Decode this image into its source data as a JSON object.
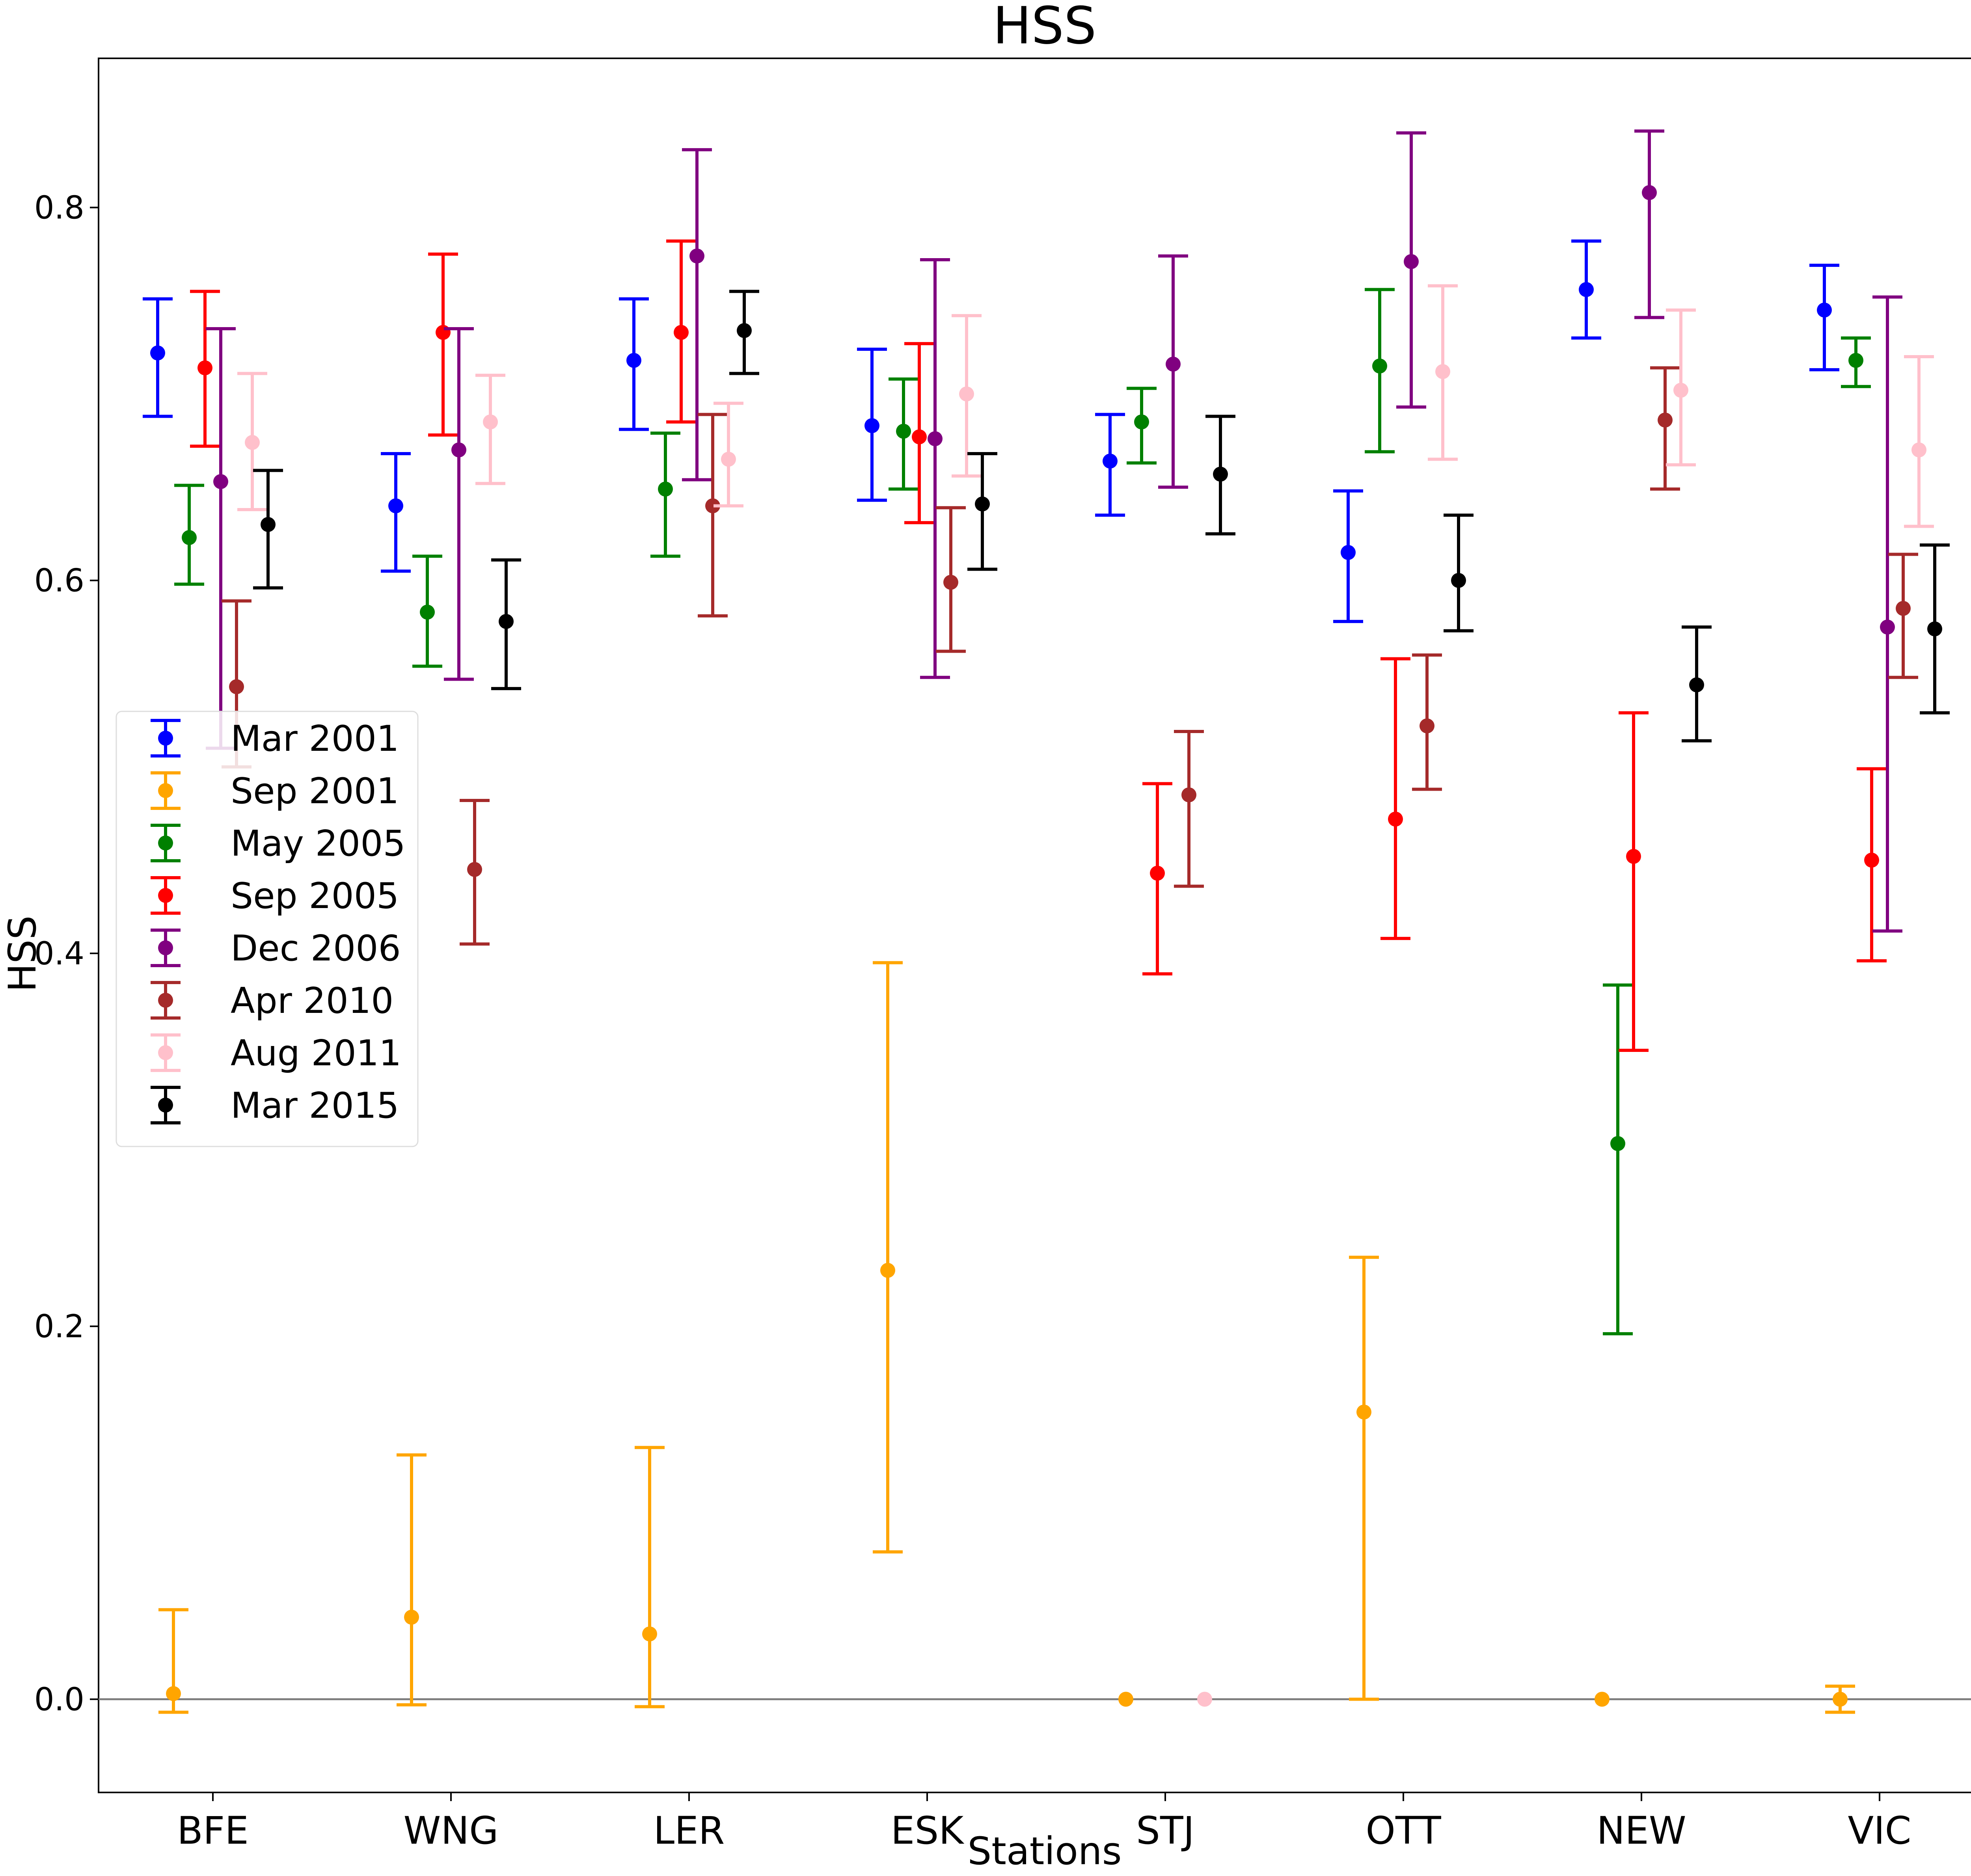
{
  "chart_data": {
    "type": "scatter",
    "title": "HSS",
    "xlabel": "Stations",
    "ylabel": "HSS",
    "categories": [
      "BFE",
      "WNG",
      "LER",
      "ESK",
      "STJ",
      "OTT",
      "NEW",
      "VIC"
    ],
    "ylim": [
      -0.05,
      0.88
    ],
    "yticks": [
      "0.0",
      "0.2",
      "0.4",
      "0.6",
      "0.8"
    ],
    "reference_line": 0.0,
    "legend_position": "center-left",
    "series": [
      {
        "name": "Mar 2001",
        "color": "#0000ff",
        "points": [
          {
            "station": "BFE",
            "value": 0.722,
            "lo": 0.688,
            "hi": 0.751
          },
          {
            "station": "WNG",
            "value": 0.64,
            "lo": 0.605,
            "hi": 0.668
          },
          {
            "station": "LER",
            "value": 0.718,
            "lo": 0.681,
            "hi": 0.751
          },
          {
            "station": "ESK",
            "value": 0.683,
            "lo": 0.643,
            "hi": 0.724
          },
          {
            "station": "STJ",
            "value": 0.664,
            "lo": 0.635,
            "hi": 0.689
          },
          {
            "station": "OTT",
            "value": 0.615,
            "lo": 0.578,
            "hi": 0.648
          },
          {
            "station": "NEW",
            "value": 0.756,
            "lo": 0.73,
            "hi": 0.782
          },
          {
            "station": "VIC",
            "value": 0.745,
            "lo": 0.713,
            "hi": 0.769
          }
        ]
      },
      {
        "name": "Sep 2001",
        "color": "#ffa500",
        "points": [
          {
            "station": "BFE",
            "value": 0.003,
            "lo": -0.007,
            "hi": 0.048
          },
          {
            "station": "WNG",
            "value": 0.044,
            "lo": -0.003,
            "hi": 0.131
          },
          {
            "station": "LER",
            "value": 0.035,
            "lo": -0.004,
            "hi": 0.135
          },
          {
            "station": "ESK",
            "value": 0.23,
            "lo": 0.079,
            "hi": 0.395
          },
          {
            "station": "STJ",
            "value": 0.0,
            "lo": 0.0,
            "hi": 0.0
          },
          {
            "station": "OTT",
            "value": 0.154,
            "lo": 0.0,
            "hi": 0.237
          },
          {
            "station": "NEW",
            "value": 0.0,
            "lo": 0.0,
            "hi": 0.0
          },
          {
            "station": "VIC",
            "value": 0.0,
            "lo": -0.007,
            "hi": 0.007
          }
        ]
      },
      {
        "name": "May 2005",
        "color": "#008000",
        "points": [
          {
            "station": "BFE",
            "value": 0.623,
            "lo": 0.598,
            "hi": 0.651
          },
          {
            "station": "WNG",
            "value": 0.583,
            "lo": 0.554,
            "hi": 0.613
          },
          {
            "station": "LER",
            "value": 0.649,
            "lo": 0.613,
            "hi": 0.679
          },
          {
            "station": "ESK",
            "value": 0.68,
            "lo": 0.649,
            "hi": 0.708
          },
          {
            "station": "STJ",
            "value": 0.685,
            "lo": 0.663,
            "hi": 0.703
          },
          {
            "station": "OTT",
            "value": 0.715,
            "lo": 0.669,
            "hi": 0.756
          },
          {
            "station": "NEW",
            "value": 0.298,
            "lo": 0.196,
            "hi": 0.383
          },
          {
            "station": "VIC",
            "value": 0.718,
            "lo": 0.704,
            "hi": 0.73
          }
        ]
      },
      {
        "name": "Sep 2005",
        "color": "#ff0000",
        "points": [
          {
            "station": "BFE",
            "value": 0.714,
            "lo": 0.672,
            "hi": 0.755
          },
          {
            "station": "WNG",
            "value": 0.733,
            "lo": 0.678,
            "hi": 0.775
          },
          {
            "station": "LER",
            "value": 0.733,
            "lo": 0.685,
            "hi": 0.782
          },
          {
            "station": "ESK",
            "value": 0.677,
            "lo": 0.631,
            "hi": 0.727
          },
          {
            "station": "STJ",
            "value": 0.443,
            "lo": 0.389,
            "hi": 0.491
          },
          {
            "station": "OTT",
            "value": 0.472,
            "lo": 0.408,
            "hi": 0.558
          },
          {
            "station": "NEW",
            "value": 0.452,
            "lo": 0.348,
            "hi": 0.529
          },
          {
            "station": "VIC",
            "value": 0.45,
            "lo": 0.396,
            "hi": 0.499
          }
        ]
      },
      {
        "name": "Dec 2006",
        "color": "#800080",
        "points": [
          {
            "station": "BFE",
            "value": 0.653,
            "lo": 0.51,
            "hi": 0.735
          },
          {
            "station": "WNG",
            "value": 0.67,
            "lo": 0.547,
            "hi": 0.735
          },
          {
            "station": "LER",
            "value": 0.774,
            "lo": 0.654,
            "hi": 0.831
          },
          {
            "station": "ESK",
            "value": 0.676,
            "lo": 0.548,
            "hi": 0.772
          },
          {
            "station": "STJ",
            "value": 0.716,
            "lo": 0.65,
            "hi": 0.774
          },
          {
            "station": "OTT",
            "value": 0.771,
            "lo": 0.693,
            "hi": 0.84
          },
          {
            "station": "NEW",
            "value": 0.808,
            "lo": 0.741,
            "hi": 0.841
          },
          {
            "station": "VIC",
            "value": 0.575,
            "lo": 0.412,
            "hi": 0.752
          }
        ]
      },
      {
        "name": "Apr 2010",
        "color": "#a52a2a",
        "points": [
          {
            "station": "BFE",
            "value": 0.543,
            "lo": 0.5,
            "hi": 0.589
          },
          {
            "station": "WNG",
            "value": 0.445,
            "lo": 0.405,
            "hi": 0.482
          },
          {
            "station": "LER",
            "value": 0.64,
            "lo": 0.581,
            "hi": 0.689
          },
          {
            "station": "ESK",
            "value": 0.599,
            "lo": 0.562,
            "hi": 0.639
          },
          {
            "station": "STJ",
            "value": 0.485,
            "lo": 0.436,
            "hi": 0.519
          },
          {
            "station": "OTT",
            "value": 0.522,
            "lo": 0.488,
            "hi": 0.56
          },
          {
            "station": "NEW",
            "value": 0.686,
            "lo": 0.649,
            "hi": 0.714
          },
          {
            "station": "VIC",
            "value": 0.585,
            "lo": 0.548,
            "hi": 0.614
          }
        ]
      },
      {
        "name": "Aug 2011",
        "color": "#ffc0cb",
        "points": [
          {
            "station": "BFE",
            "value": 0.674,
            "lo": 0.638,
            "hi": 0.711
          },
          {
            "station": "WNG",
            "value": 0.685,
            "lo": 0.652,
            "hi": 0.71
          },
          {
            "station": "LER",
            "value": 0.665,
            "lo": 0.64,
            "hi": 0.695
          },
          {
            "station": "ESK",
            "value": 0.7,
            "lo": 0.656,
            "hi": 0.742
          },
          {
            "station": "STJ",
            "value": 0.0,
            "lo": 0.0,
            "hi": 0.0
          },
          {
            "station": "OTT",
            "value": 0.712,
            "lo": 0.665,
            "hi": 0.758
          },
          {
            "station": "NEW",
            "value": 0.702,
            "lo": 0.662,
            "hi": 0.745
          },
          {
            "station": "VIC",
            "value": 0.67,
            "lo": 0.629,
            "hi": 0.72
          }
        ]
      },
      {
        "name": "Mar 2015",
        "color": "#000000",
        "points": [
          {
            "station": "BFE",
            "value": 0.63,
            "lo": 0.596,
            "hi": 0.659
          },
          {
            "station": "WNG",
            "value": 0.578,
            "lo": 0.542,
            "hi": 0.611
          },
          {
            "station": "LER",
            "value": 0.734,
            "lo": 0.711,
            "hi": 0.755
          },
          {
            "station": "ESK",
            "value": 0.641,
            "lo": 0.606,
            "hi": 0.668
          },
          {
            "station": "STJ",
            "value": 0.657,
            "lo": 0.625,
            "hi": 0.688
          },
          {
            "station": "OTT",
            "value": 0.6,
            "lo": 0.573,
            "hi": 0.635
          },
          {
            "station": "NEW",
            "value": 0.544,
            "lo": 0.514,
            "hi": 0.575
          },
          {
            "station": "VIC",
            "value": 0.574,
            "lo": 0.529,
            "hi": 0.619
          }
        ]
      }
    ]
  }
}
